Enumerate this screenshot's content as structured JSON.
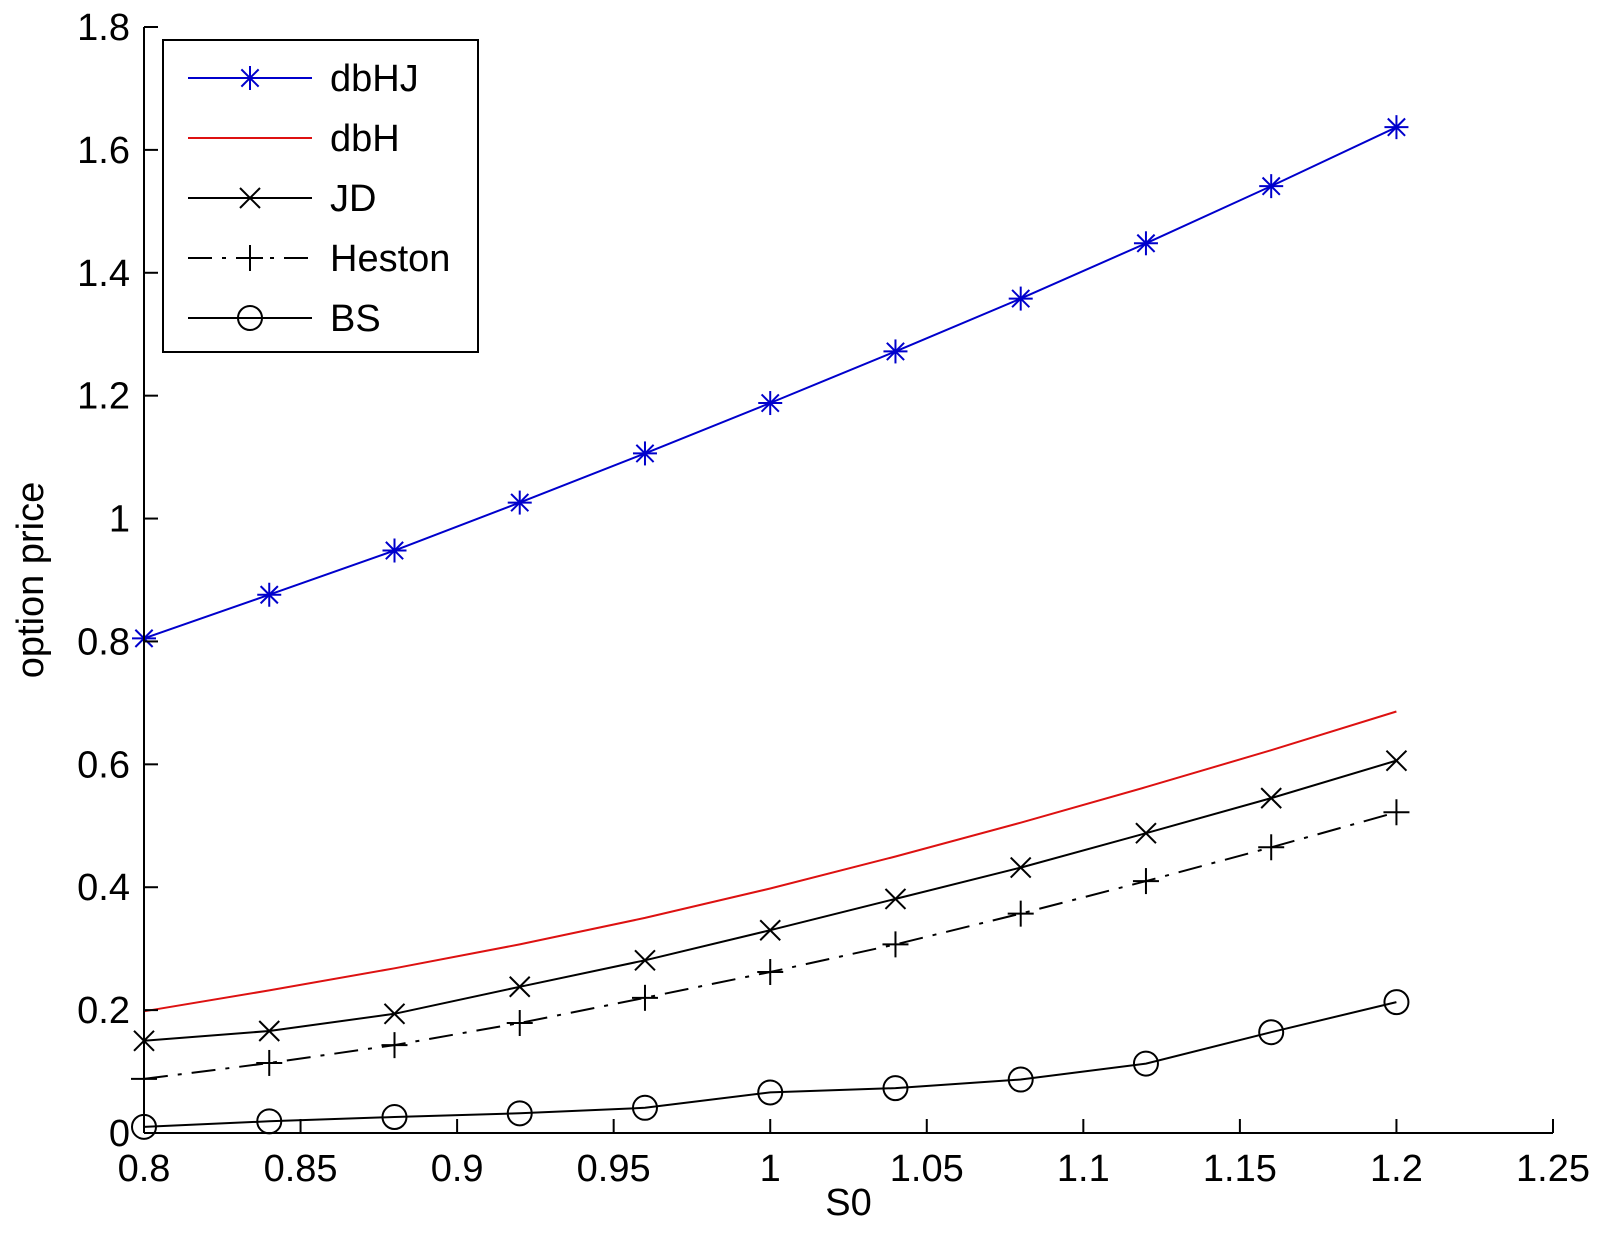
{
  "chart_data": {
    "type": "line",
    "title": "",
    "xlabel": "S0",
    "ylabel": "option price",
    "xlim": [
      0.8,
      1.25
    ],
    "ylim": [
      0,
      1.8
    ],
    "xticks": [
      0.8,
      0.85,
      0.9,
      0.95,
      1,
      1.05,
      1.1,
      1.15,
      1.2,
      1.25
    ],
    "xtick_labels": [
      "0.8",
      "0.85",
      "0.9",
      "0.95",
      "1",
      "1.05",
      "1.1",
      "1.15",
      "1.2",
      "1.25"
    ],
    "yticks": [
      0,
      0.2,
      0.4,
      0.6,
      0.8,
      1,
      1.2,
      1.4,
      1.6,
      1.8
    ],
    "ytick_labels": [
      "0",
      "0.2",
      "0.4",
      "0.6",
      "0.8",
      "1",
      "1.2",
      "1.4",
      "1.6",
      "1.8"
    ],
    "grid": false,
    "legend_position": "top-left",
    "x": [
      0.8,
      0.84,
      0.88,
      0.92,
      0.96,
      1.0,
      1.04,
      1.08,
      1.12,
      1.16,
      1.2
    ],
    "series": [
      {
        "name": "dbHJ",
        "color": "#0000cc",
        "line_style": "solid",
        "marker": "asterisk",
        "values": [
          0.805,
          0.876,
          0.948,
          1.026,
          1.106,
          1.188,
          1.272,
          1.358,
          1.448,
          1.541,
          1.637
        ]
      },
      {
        "name": "dbH",
        "color": "#dd1111",
        "line_style": "solid",
        "marker": "none",
        "values": [
          0.198,
          0.232,
          0.268,
          0.307,
          0.35,
          0.398,
          0.45,
          0.505,
          0.563,
          0.623,
          0.686
        ]
      },
      {
        "name": "JD",
        "color": "#000000",
        "line_style": "solid",
        "marker": "x",
        "values": [
          0.15,
          0.166,
          0.194,
          0.238,
          0.281,
          0.33,
          0.381,
          0.432,
          0.488,
          0.545,
          0.606
        ]
      },
      {
        "name": "Heston",
        "color": "#000000",
        "line_style": "dashdot",
        "marker": "plus",
        "values": [
          0.088,
          0.114,
          0.143,
          0.179,
          0.22,
          0.262,
          0.307,
          0.357,
          0.41,
          0.465,
          0.522
        ]
      },
      {
        "name": "BS",
        "color": "#000000",
        "line_style": "solid",
        "marker": "circle",
        "values": [
          0.01,
          0.019,
          0.026,
          0.032,
          0.041,
          0.066,
          0.073,
          0.087,
          0.113,
          0.164,
          0.213
        ]
      }
    ]
  }
}
